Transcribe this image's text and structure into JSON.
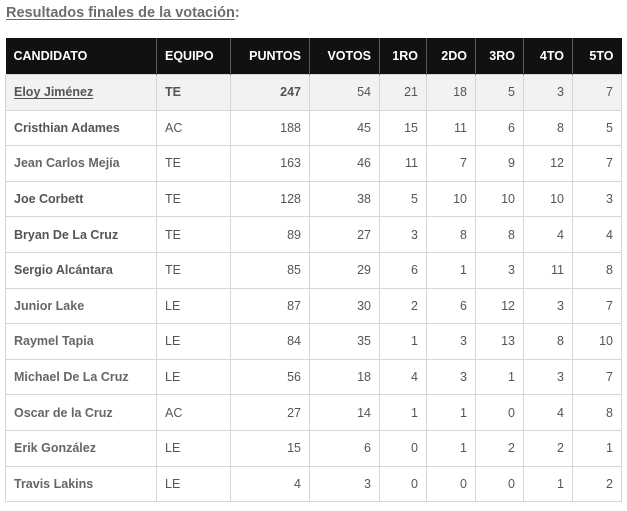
{
  "heading": {
    "link_text": "Resultados finales de la votación",
    "suffix": ":"
  },
  "table": {
    "headers": [
      "CANDIDATO",
      "EQUIPO",
      "PUNTOS",
      "VOTOS",
      "1RO",
      "2DO",
      "3RO",
      "4TO",
      "5TO"
    ],
    "rows": [
      {
        "candidate": "Eloy Jiménez",
        "team": "TE",
        "points": "247",
        "votes": "54",
        "first": "21",
        "second": "18",
        "third": "5",
        "fourth": "3",
        "fifth": "7"
      },
      {
        "candidate": "Cristhian Adames",
        "team": "AC",
        "points": "188",
        "votes": "45",
        "first": "15",
        "second": "11",
        "third": "6",
        "fourth": "8",
        "fifth": "5"
      },
      {
        "candidate": "Jean Carlos Mejía",
        "team": "TE",
        "points": "163",
        "votes": "46",
        "first": "11",
        "second": "7",
        "third": "9",
        "fourth": "12",
        "fifth": "7"
      },
      {
        "candidate": "Joe Corbett",
        "team": "TE",
        "points": "128",
        "votes": "38",
        "first": "5",
        "second": "10",
        "third": "10",
        "fourth": "10",
        "fifth": "3"
      },
      {
        "candidate": "Bryan De La Cruz",
        "team": "TE",
        "points": "89",
        "votes": "27",
        "first": "3",
        "second": "8",
        "third": "8",
        "fourth": "4",
        "fifth": "4"
      },
      {
        "candidate": "Sergio Alcántara",
        "team": "TE",
        "points": "85",
        "votes": "29",
        "first": "6",
        "second": "1",
        "third": "3",
        "fourth": "11",
        "fifth": "8"
      },
      {
        "candidate": "Junior Lake",
        "team": "LE",
        "points": "87",
        "votes": "30",
        "first": "2",
        "second": "6",
        "third": "12",
        "fourth": "3",
        "fifth": "7"
      },
      {
        "candidate": "Raymel Tapia",
        "team": "LE",
        "points": "84",
        "votes": "35",
        "first": "1",
        "second": "3",
        "third": "13",
        "fourth": "8",
        "fifth": "10"
      },
      {
        "candidate": "Michael De La Cruz",
        "team": "LE",
        "points": "56",
        "votes": "18",
        "first": "4",
        "second": "3",
        "third": "1",
        "fourth": "3",
        "fifth": "7"
      },
      {
        "candidate": "Oscar de la Cruz",
        "team": "AC",
        "points": "27",
        "votes": "14",
        "first": "1",
        "second": "1",
        "third": "0",
        "fourth": "4",
        "fifth": "8"
      },
      {
        "candidate": "Erik González",
        "team": "LE",
        "points": "15",
        "votes": "6",
        "first": "0",
        "second": "1",
        "third": "2",
        "fourth": "2",
        "fifth": "1"
      },
      {
        "candidate": "Travis Lakins",
        "team": "LE",
        "points": "4",
        "votes": "3",
        "first": "0",
        "second": "0",
        "third": "0",
        "fourth": "1",
        "fifth": "2"
      }
    ]
  },
  "colors": {
    "header_bg": "#111111",
    "header_text": "#ffffff",
    "highlight_row_bg": "#f2f2f2",
    "border": "#d6d6d6",
    "heading_text": "#6d6d6d"
  }
}
